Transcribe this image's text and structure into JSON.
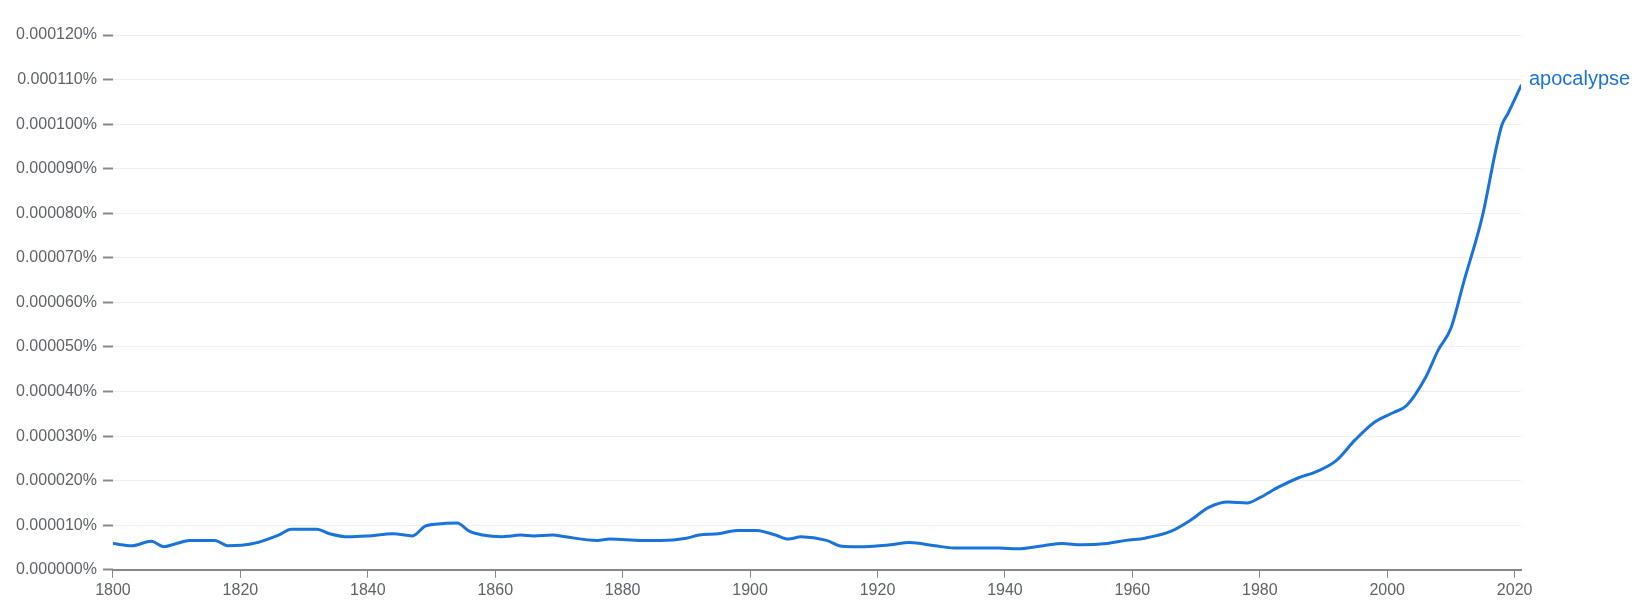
{
  "chart_data": {
    "type": "line",
    "x": [
      1800,
      1803,
      1806,
      1808,
      1810,
      1812,
      1816,
      1818,
      1822,
      1826,
      1828,
      1832,
      1834,
      1837,
      1840,
      1844,
      1847,
      1849,
      1851,
      1854,
      1856,
      1858,
      1861,
      1864,
      1866,
      1869,
      1871,
      1876,
      1878,
      1883,
      1886,
      1890,
      1892,
      1895,
      1898,
      1901,
      1904,
      1906,
      1908,
      1912,
      1914,
      1916,
      1918,
      1922,
      1925,
      1929,
      1932,
      1936,
      1939,
      1942,
      1946,
      1949,
      1952,
      1956,
      1959,
      1962,
      1966,
      1969,
      1972,
      1975,
      1978,
      1980,
      1983,
      1986,
      1989,
      1992,
      1995,
      1998,
      2001,
      2003,
      2006,
      2008,
      2010,
      2012,
      2015,
      2017,
      2018,
      2019,
      2021
    ],
    "series": [
      {
        "name": "apocalypse",
        "color": "#1a73d9",
        "values": [
          5.9e-06,
          5.4e-06,
          6.4e-06,
          5.2e-06,
          5.9e-06,
          6.6e-06,
          6.6e-06,
          5.4e-06,
          5.9e-06,
          7.8e-06,
          9.1e-06,
          9.1e-06,
          8.1e-06,
          7.4e-06,
          7.6e-06,
          8.1e-06,
          7.6e-06,
          9.8e-06,
          1.03e-05,
          1.05e-05,
          8.6e-06,
          7.8e-06,
          7.4e-06,
          7.8e-06,
          7.6e-06,
          7.8e-06,
          7.4e-06,
          6.6e-06,
          6.9e-06,
          6.6e-06,
          6.6e-06,
          7.1e-06,
          7.8e-06,
          8.1e-06,
          8.8e-06,
          8.8e-06,
          7.8e-06,
          6.9e-06,
          7.4e-06,
          6.6e-06,
          5.4e-06,
          5.2e-06,
          5.2e-06,
          5.6e-06,
          6.1e-06,
          5.4e-06,
          4.9e-06,
          4.9e-06,
          4.9e-06,
          4.7e-06,
          5.4e-06,
          5.9e-06,
          5.6e-06,
          5.9e-06,
          6.6e-06,
          7.1e-06,
          8.6e-06,
          1.1e-05,
          1.4e-05,
          1.52e-05,
          1.5e-05,
          1.62e-05,
          1.86e-05,
          2.06e-05,
          2.21e-05,
          2.45e-05,
          2.92e-05,
          3.31e-05,
          3.53e-05,
          3.68e-05,
          4.31e-05,
          4.93e-05,
          5.42e-05,
          6.45e-05,
          7.97e-05,
          9.39e-05,
          9.98e-05,
          0.0001025,
          0.0001086
        ]
      }
    ],
    "xlim": [
      1800,
      2021
    ],
    "xticks": [
      1800,
      1820,
      1840,
      1860,
      1880,
      1900,
      1920,
      1940,
      1960,
      1980,
      2000,
      2020
    ],
    "ylim": [
      0,
      0.00012
    ],
    "yticks": [
      {
        "value": 0,
        "label": "0.000000%"
      },
      {
        "value": 1e-05,
        "label": "0.000010%"
      },
      {
        "value": 2e-05,
        "label": "0.000020%"
      },
      {
        "value": 3e-05,
        "label": "0.000030%"
      },
      {
        "value": 4e-05,
        "label": "0.000040%"
      },
      {
        "value": 5e-05,
        "label": "0.000050%"
      },
      {
        "value": 6e-05,
        "label": "0.000060%"
      },
      {
        "value": 7e-05,
        "label": "0.000070%"
      },
      {
        "value": 8e-05,
        "label": "0.000080%"
      },
      {
        "value": 9e-05,
        "label": "0.000090%"
      },
      {
        "value": 0.0001,
        "label": "0.000100%"
      },
      {
        "value": 0.00011,
        "label": "0.000110%"
      },
      {
        "value": 0.00012,
        "label": "0.000120%"
      }
    ],
    "grid": "y",
    "legend": false,
    "marker": "none",
    "line_style": "solid"
  }
}
